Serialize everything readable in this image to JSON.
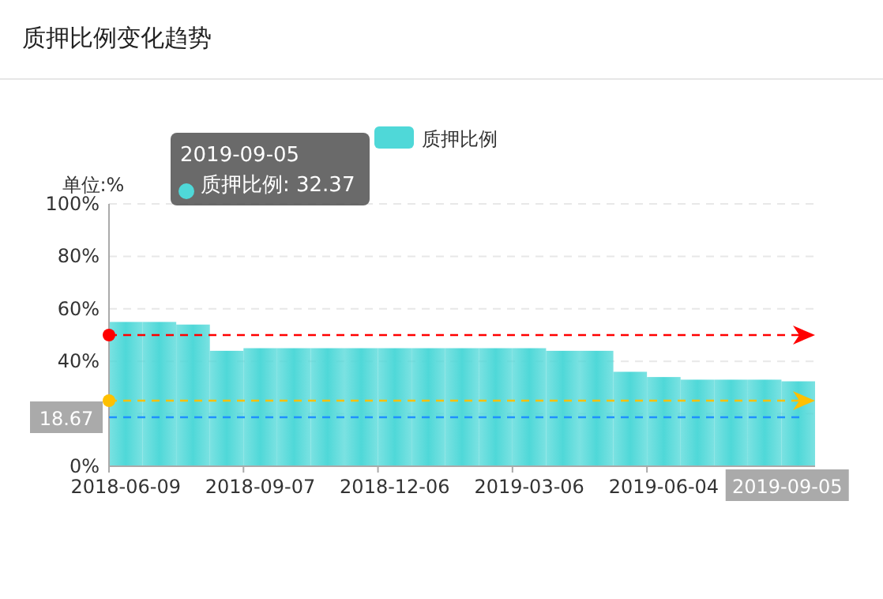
{
  "chart_data": {
    "type": "bar",
    "title": "质押比例变化趋势",
    "ylabel": "单位:%",
    "categories": [
      "2018-06-09",
      null,
      null,
      null,
      "2018-09-07",
      null,
      null,
      null,
      "2018-12-06",
      null,
      null,
      null,
      "2019-03-06",
      null,
      null,
      null,
      "2019-06-04",
      null,
      null,
      null,
      "2019-09-05"
    ],
    "series": [
      {
        "name": "质押比例",
        "color": "#4fd8d8",
        "values": [
          55,
          55,
          54,
          44,
          45,
          45,
          45,
          45,
          45,
          45,
          45,
          45,
          45,
          44,
          44,
          36,
          34,
          33,
          33,
          33,
          32.37
        ]
      }
    ],
    "ylim": [
      0,
      100
    ],
    "yticks": [
      {
        "value": 0,
        "label": "0%"
      },
      {
        "value": 20,
        "label": null
      },
      {
        "value": 40,
        "label": "40%"
      },
      {
        "value": 60,
        "label": "60%"
      },
      {
        "value": 80,
        "label": "80%"
      },
      {
        "value": 100,
        "label": "100%"
      }
    ],
    "grid": "y",
    "legend": "top",
    "ref_lines": [
      {
        "axis": "y",
        "value": 50,
        "label": null,
        "color": "#ff0000",
        "line_style": "dashed"
      },
      {
        "axis": "y",
        "value": 25,
        "label": null,
        "color": "#ffc000",
        "line_style": "dashed"
      },
      {
        "axis": "y",
        "value": 18.67,
        "label": "18.67",
        "color": "#1e90ff",
        "line_style": "dashed"
      }
    ],
    "annotations": [
      "2019-09-05\n质押比例: 32.37"
    ]
  }
}
